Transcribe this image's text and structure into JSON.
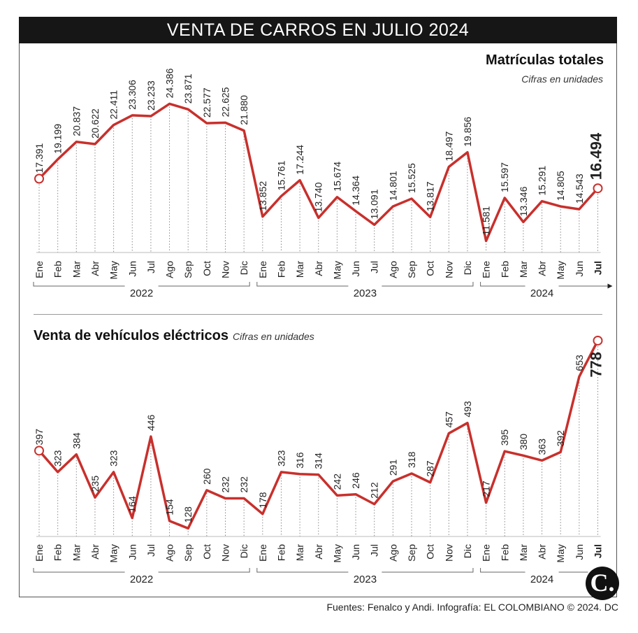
{
  "header": {
    "title": "VENTA DE CARROS EN JULIO 2024"
  },
  "chart_data": [
    {
      "type": "line",
      "title": "Matrículas totales",
      "subtitle": "Cifras en unidades",
      "categories": [
        "Ene",
        "Feb",
        "Mar",
        "Abr",
        "May",
        "Jun",
        "Jul",
        "Ago",
        "Sep",
        "Oct",
        "Nov",
        "Dic",
        "Ene",
        "Feb",
        "Mar",
        "Abr",
        "May",
        "Jun",
        "Jul",
        "Ago",
        "Sep",
        "Oct",
        "Nov",
        "Dic",
        "Ene",
        "Feb",
        "Mar",
        "Abr",
        "May",
        "Jun",
        "Jul"
      ],
      "years": [
        "2022",
        "2023",
        "2024"
      ],
      "values": [
        17391,
        19199,
        20837,
        20622,
        22411,
        23306,
        23233,
        24386,
        23871,
        22577,
        22625,
        21880,
        13852,
        15761,
        17244,
        13740,
        15674,
        14364,
        13091,
        14801,
        15525,
        13817,
        18497,
        19856,
        11581,
        15597,
        13346,
        15291,
        14805,
        14543,
        16494
      ],
      "labels": [
        "17.391",
        "19.199",
        "20.837",
        "20.622",
        "22.411",
        "23.306",
        "23.233",
        "24.386",
        "23.871",
        "22.577",
        "22.625",
        "21.880",
        "13.852",
        "15.761",
        "17.244",
        "13.740",
        "15.674",
        "14.364",
        "13.091",
        "14.801",
        "15.525",
        "13.817",
        "18.497",
        "19.856",
        "11.581",
        "15.597",
        "13.346",
        "15.291",
        "14.805",
        "14.543",
        "16.494"
      ],
      "ylim": [
        10500,
        25000
      ],
      "color": "#c8302c"
    },
    {
      "type": "line",
      "title": "Venta de vehículos eléctricos",
      "subtitle": "Cifras en unidades",
      "categories": [
        "Ene",
        "Feb",
        "Mar",
        "Abr",
        "May",
        "Jun",
        "Jul",
        "Ago",
        "Sep",
        "Oct",
        "Nov",
        "Dic",
        "Ene",
        "Feb",
        "Mar",
        "Abr",
        "May",
        "Jun",
        "Jul",
        "Ago",
        "Sep",
        "Oct",
        "Nov",
        "Dic",
        "Ene",
        "Feb",
        "Mar",
        "Abr",
        "May",
        "Jun",
        "Jul"
      ],
      "years": [
        "2022",
        "2023",
        "2024"
      ],
      "values": [
        397,
        323,
        384,
        235,
        323,
        164,
        446,
        154,
        128,
        260,
        232,
        232,
        178,
        323,
        316,
        314,
        242,
        246,
        212,
        291,
        318,
        287,
        457,
        493,
        217,
        395,
        380,
        363,
        392,
        653,
        778
      ],
      "labels": [
        "397",
        "323",
        "384",
        "235",
        "323",
        "164",
        "446",
        "154",
        "128",
        "260",
        "232",
        "232",
        "178",
        "323",
        "316",
        "314",
        "242",
        "246",
        "212",
        "291",
        "318",
        "287",
        "457",
        "493",
        "217",
        "395",
        "380",
        "363",
        "392",
        "653",
        "778"
      ],
      "ylim": [
        100,
        790
      ],
      "color": "#c8302c"
    }
  ],
  "footer": {
    "source": "Fuentes: Fenalco y Andi. Infografía: EL COLOMBIANO © 2024. DC",
    "logo_letter": "C."
  }
}
